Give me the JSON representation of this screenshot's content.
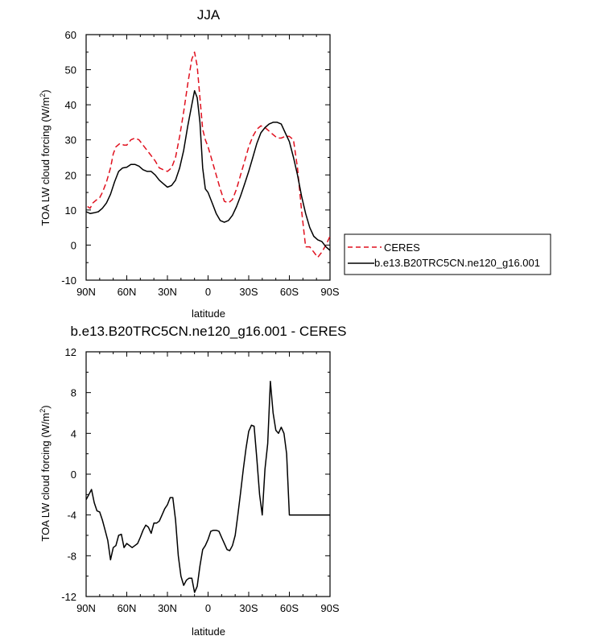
{
  "chart_data": [
    {
      "type": "line",
      "title": "JJA",
      "xlabel": "latitude",
      "ylabel": "TOA LW cloud forcing (W/m",
      "ylabel_sup": "2",
      "ylabel_end": ")",
      "xlim": [
        -90,
        90
      ],
      "ylim": [
        -10,
        60
      ],
      "x_ticks": [
        -90,
        -60,
        -30,
        0,
        30,
        60,
        90
      ],
      "x_tick_labels": [
        "90N",
        "60N",
        "30N",
        "0",
        "30S",
        "60S",
        "90S"
      ],
      "y_ticks": [
        -10,
        0,
        10,
        20,
        30,
        40,
        50,
        60
      ],
      "y_tick_labels": [
        "-10",
        "0",
        "10",
        "20",
        "30",
        "40",
        "50",
        "60"
      ],
      "legend": {
        "placement": "right",
        "entries": [
          {
            "label": "CERES",
            "style": "dashed",
            "color": "#e0101e"
          },
          {
            "label": "b.e13.B20TRC5CN.ne120_g16.001",
            "style": "solid",
            "color": "#000000"
          }
        ]
      },
      "series": [
        {
          "name": "CERES",
          "color": "#e0101e",
          "style": "dashed",
          "x": [
            -89,
            -87,
            -85,
            -82,
            -80,
            -78,
            -75,
            -72,
            -70,
            -68,
            -65,
            -62,
            -60,
            -57,
            -54,
            -51,
            -48,
            -45,
            -42,
            -39,
            -36,
            -33,
            -30,
            -27,
            -24,
            -21,
            -18,
            -15,
            -12,
            -10,
            -8,
            -6,
            -4,
            -2,
            0,
            3,
            6,
            9,
            12,
            15,
            18,
            21,
            24,
            27,
            30,
            33,
            36,
            39,
            42,
            45,
            48,
            51,
            54,
            57,
            60,
            63,
            66,
            69,
            72,
            75,
            78,
            81,
            84,
            87,
            90
          ],
          "values": [
            11,
            10.5,
            12,
            13,
            13.5,
            15,
            18,
            22,
            26,
            28,
            29,
            28.5,
            28.5,
            30,
            30.5,
            30,
            28.5,
            27,
            25.5,
            24,
            22,
            21.5,
            21,
            22,
            25,
            31,
            38,
            46,
            53,
            55,
            51,
            42,
            33,
            30,
            28,
            24,
            20,
            16,
            12.5,
            12,
            13,
            16,
            20,
            24,
            28,
            31,
            33,
            34,
            33.5,
            32.5,
            31.5,
            30.5,
            30.5,
            31,
            31,
            30,
            22,
            10,
            -0.5,
            -0.5,
            -2,
            -3.5,
            -2,
            0,
            2.5
          ]
        },
        {
          "name": "b.e13.B20TRC5CN.ne120_g16.001",
          "color": "#000000",
          "style": "solid",
          "x": [
            -90,
            -87,
            -84,
            -81,
            -78,
            -75,
            -72,
            -69,
            -66,
            -63,
            -60,
            -57,
            -54,
            -51,
            -48,
            -45,
            -42,
            -39,
            -36,
            -33,
            -30,
            -27,
            -24,
            -21,
            -18,
            -15,
            -12,
            -10,
            -8,
            -6,
            -4,
            -2,
            0,
            3,
            6,
            9,
            12,
            15,
            18,
            21,
            24,
            27,
            30,
            33,
            36,
            39,
            42,
            45,
            48,
            51,
            54,
            57,
            60,
            63,
            66,
            69,
            72,
            75,
            78,
            81,
            84,
            87,
            90
          ],
          "values": [
            9.5,
            9,
            9.2,
            9.5,
            10.5,
            12,
            14.5,
            18,
            21,
            22,
            22.2,
            23,
            23,
            22.5,
            21.5,
            21,
            21,
            20,
            18.5,
            17.5,
            16.5,
            17,
            18.5,
            22,
            27,
            34,
            40,
            44,
            42,
            35,
            22,
            16,
            15,
            12,
            9,
            7,
            6.5,
            7,
            8.5,
            11,
            14,
            17.5,
            21,
            25,
            29,
            32,
            33.5,
            34.5,
            35,
            35,
            34.5,
            32,
            29.5,
            25,
            20,
            14,
            9,
            5,
            2.5,
            1.5,
            1,
            -0.5,
            -1.5
          ]
        }
      ]
    },
    {
      "type": "line",
      "title": "b.e13.B20TRC5CN.ne120_g16.001 - CERES",
      "xlabel": "latitude",
      "ylabel": "TOA LW cloud forcing (W/m",
      "ylabel_sup": "2",
      "ylabel_end": ")",
      "xlim": [
        -90,
        90
      ],
      "ylim": [
        -12,
        12
      ],
      "x_ticks": [
        -90,
        -60,
        -30,
        0,
        30,
        60,
        90
      ],
      "x_tick_labels": [
        "90N",
        "60N",
        "30N",
        "0",
        "30S",
        "60S",
        "90S"
      ],
      "y_ticks": [
        -12,
        -8,
        -4,
        0,
        4,
        8,
        12
      ],
      "y_tick_labels": [
        "-12",
        "-8",
        "-4",
        "0",
        "4",
        "8",
        "12"
      ],
      "series": [
        {
          "name": "b.e13.B20TRC5CN.ne120_g16.001 - CERES",
          "color": "#000000",
          "style": "solid",
          "x": [
            -90,
            -88,
            -86,
            -84,
            -82,
            -80,
            -78,
            -76,
            -74,
            -72,
            -70,
            -68,
            -66,
            -64,
            -62,
            -60,
            -58,
            -56,
            -54,
            -52,
            -50,
            -48,
            -46,
            -44,
            -42,
            -40,
            -38,
            -36,
            -34,
            -32,
            -30,
            -28,
            -26,
            -24,
            -22,
            -20,
            -18,
            -16,
            -14,
            -12,
            -10,
            -8,
            -6,
            -4,
            -2,
            0,
            2,
            4,
            6,
            8,
            10,
            12,
            14,
            16,
            18,
            20,
            22,
            24,
            26,
            28,
            30,
            32,
            34,
            36,
            38,
            40,
            42,
            44,
            46,
            48,
            50,
            52,
            54,
            56,
            58,
            60,
            62,
            64,
            66,
            68,
            70,
            72,
            74,
            76,
            78,
            80,
            82,
            84,
            86,
            88,
            90
          ],
          "values": [
            -2.5,
            -2,
            -1.5,
            -2.8,
            -3.6,
            -3.7,
            -4.5,
            -5.5,
            -6.5,
            -8.4,
            -7.2,
            -7,
            -6,
            -5.9,
            -7.2,
            -6.8,
            -7.0,
            -7.2,
            -7.0,
            -6.8,
            -6.2,
            -5.5,
            -5.0,
            -5.2,
            -5.8,
            -4.8,
            -4.8,
            -4.6,
            -4.0,
            -3.4,
            -3.0,
            -2.3,
            -2.3,
            -4.5,
            -8.0,
            -10.0,
            -10.9,
            -10.4,
            -10.2,
            -10.2,
            -11.6,
            -11.0,
            -9.0,
            -7.4,
            -7.0,
            -6.4,
            -5.6,
            -5.5,
            -5.5,
            -5.6,
            -6.2,
            -6.8,
            -7.4,
            -7.5,
            -7.0,
            -6.0,
            -4.0,
            -1.8,
            0.5,
            2.5,
            4.2,
            4.8,
            4.7,
            1.5,
            -2.0,
            -4.0,
            0.5,
            3.0,
            9.1,
            6.0,
            4.3,
            4.0,
            4.6,
            4.0,
            2.0,
            -4.0,
            -4.0,
            -4.0,
            -4.0,
            -4.0,
            -4.0,
            -4.0,
            -4.0,
            -4.0,
            -4.0,
            -4.0,
            -4.0,
            -4.0,
            -4.0,
            -4.0,
            -4.0
          ]
        }
      ]
    }
  ]
}
